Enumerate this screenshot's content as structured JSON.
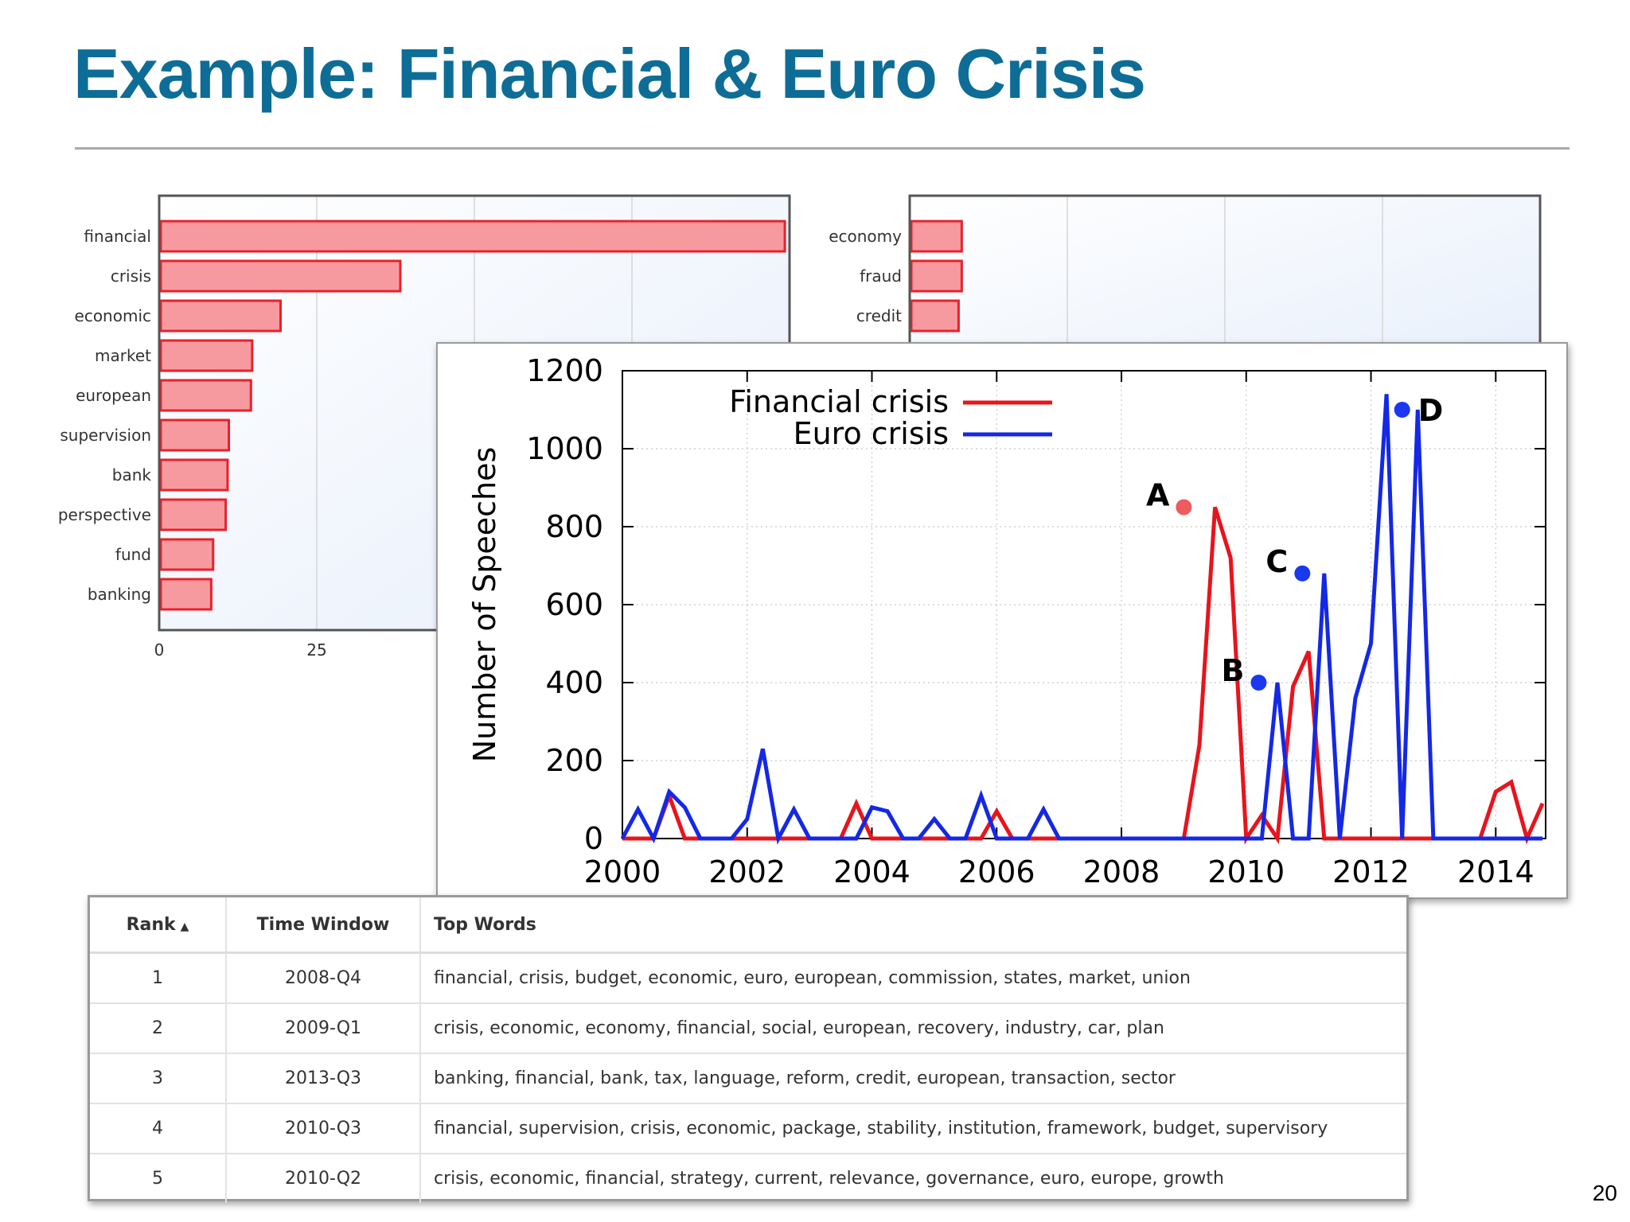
{
  "slide": {
    "title": "Example: Financial & Euro Crisis",
    "page_number": "20"
  },
  "colors": {
    "title": "#0e6d96",
    "bar_fill": "#f79aa0",
    "bar_stroke": "#e8212b",
    "financial": "#e8141c",
    "euro": "#1428e6",
    "marker_a": "#ef5a5e",
    "marker_blue": "#1a38f0"
  },
  "chart_data": [
    {
      "type": "bar",
      "orientation": "horizontal",
      "categories": [
        "financial",
        "crisis",
        "economic",
        "market",
        "european",
        "supervision",
        "bank",
        "perspective",
        "fund",
        "banking"
      ],
      "values": [
        99,
        38,
        19,
        14.5,
        14.3,
        10.8,
        10.6,
        10.3,
        8.3,
        8.0
      ],
      "xlim": [
        0,
        100
      ],
      "x_ticks": [
        "0",
        "25"
      ]
    },
    {
      "type": "bar",
      "orientation": "horizontal",
      "categories": [
        "economy",
        "fraud",
        "credit"
      ],
      "values": [
        8,
        8,
        7.5
      ],
      "xlim": [
        0,
        100
      ]
    },
    {
      "type": "line",
      "ylabel": "Number of Speeches",
      "xlim": [
        2000,
        2014.8
      ],
      "ylim": [
        0,
        1200
      ],
      "x_ticks": [
        2000,
        2002,
        2004,
        2006,
        2008,
        2010,
        2012,
        2014
      ],
      "y_ticks": [
        0,
        200,
        400,
        600,
        800,
        1000,
        1200
      ],
      "grid": true,
      "legend_position": "top-left",
      "series": [
        {
          "name": "Financial crisis",
          "x": [
            2000,
            2000.25,
            2000.5,
            2000.75,
            2001,
            2001.25,
            2001.5,
            2001.75,
            2002,
            2002.25,
            2002.5,
            2002.75,
            2003,
            2003.25,
            2003.5,
            2003.75,
            2004,
            2004.25,
            2004.5,
            2004.75,
            2005,
            2005.25,
            2005.5,
            2005.75,
            2006,
            2006.25,
            2006.5,
            2006.75,
            2007,
            2007.25,
            2007.5,
            2007.75,
            2008,
            2008.25,
            2008.5,
            2008.75,
            2009,
            2009.25,
            2009.5,
            2009.75,
            2010,
            2010.25,
            2010.5,
            2010.75,
            2011,
            2011.25,
            2011.5,
            2011.75,
            2012,
            2012.25,
            2012.5,
            2012.75,
            2013,
            2013.25,
            2013.5,
            2013.75,
            2014,
            2014.25,
            2014.5,
            2014.75
          ],
          "values": [
            0,
            0,
            0,
            110,
            0,
            0,
            0,
            0,
            0,
            0,
            0,
            0,
            0,
            0,
            0,
            90,
            0,
            0,
            0,
            0,
            0,
            0,
            0,
            0,
            70,
            0,
            0,
            0,
            0,
            0,
            0,
            0,
            0,
            0,
            0,
            0,
            0,
            240,
            850,
            720,
            0,
            60,
            0,
            390,
            480,
            0,
            0,
            0,
            0,
            0,
            0,
            0,
            0,
            0,
            0,
            0,
            120,
            145,
            0,
            90
          ]
        },
        {
          "name": "Euro crisis",
          "x": [
            2000,
            2000.25,
            2000.5,
            2000.75,
            2001,
            2001.25,
            2001.5,
            2001.75,
            2002,
            2002.25,
            2002.5,
            2002.75,
            2003,
            2003.25,
            2003.5,
            2003.75,
            2004,
            2004.25,
            2004.5,
            2004.75,
            2005,
            2005.25,
            2005.5,
            2005.75,
            2006,
            2006.25,
            2006.5,
            2006.75,
            2007,
            2007.25,
            2007.5,
            2007.75,
            2008,
            2008.25,
            2008.5,
            2008.75,
            2009,
            2009.25,
            2009.5,
            2009.75,
            2010,
            2010.25,
            2010.5,
            2010.75,
            2011,
            2011.25,
            2011.5,
            2011.75,
            2012,
            2012.25,
            2012.5,
            2012.75,
            2013,
            2013.25,
            2013.5,
            2013.75,
            2014,
            2014.25,
            2014.5,
            2014.75
          ],
          "values": [
            0,
            75,
            0,
            120,
            80,
            0,
            0,
            0,
            50,
            230,
            0,
            75,
            0,
            0,
            0,
            0,
            80,
            70,
            0,
            0,
            50,
            0,
            0,
            110,
            0,
            0,
            0,
            75,
            0,
            0,
            0,
            0,
            0,
            0,
            0,
            0,
            0,
            0,
            0,
            0,
            0,
            0,
            400,
            0,
            0,
            680,
            0,
            360,
            500,
            1140,
            0,
            1100,
            0,
            0,
            0,
            0,
            0,
            0,
            0,
            0
          ]
        }
      ],
      "annotations": [
        {
          "label": "A",
          "series": "Financial crisis",
          "x": 2009.0,
          "y": 850
        },
        {
          "label": "B",
          "series": "Euro crisis",
          "x": 2010.2,
          "y": 400
        },
        {
          "label": "C",
          "series": "Euro crisis",
          "x": 2010.9,
          "y": 680
        },
        {
          "label": "D",
          "series": "Euro crisis",
          "x": 2012.5,
          "y": 1100
        }
      ]
    },
    {
      "type": "table",
      "columns": [
        "Rank",
        "Time Window",
        "Top Words"
      ],
      "sort_indicator": "▲",
      "rows": [
        [
          "1",
          "2008-Q4",
          "financial, crisis, budget, economic, euro, european, commission, states, market, union"
        ],
        [
          "2",
          "2009-Q1",
          "crisis, economic, economy, financial, social, european, recovery, industry, car, plan"
        ],
        [
          "3",
          "2013-Q3",
          "banking, financial, bank, tax, language, reform, credit, european, transaction, sector"
        ],
        [
          "4",
          "2010-Q3",
          "financial, supervision, crisis, economic, package, stability, institution, framework, budget, supervisory"
        ],
        [
          "5",
          "2010-Q2",
          "crisis, economic, financial, strategy, current, relevance, governance, euro, europe, growth"
        ]
      ]
    }
  ]
}
